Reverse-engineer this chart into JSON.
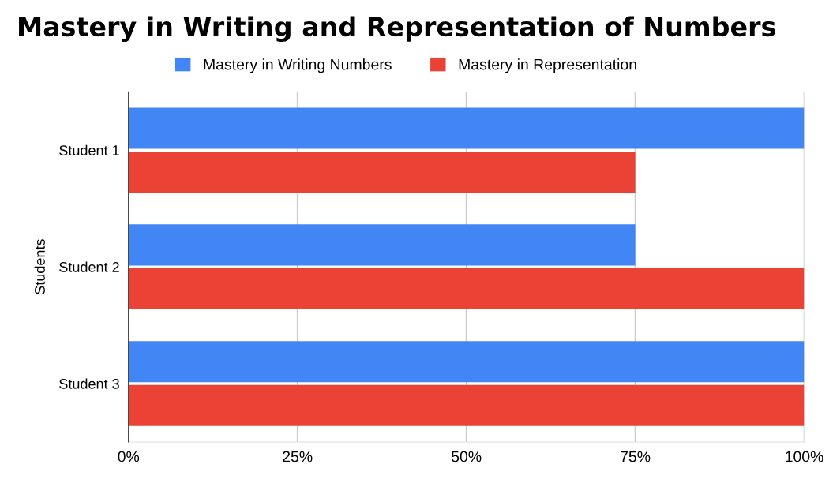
{
  "chart_data": {
    "type": "bar",
    "orientation": "horizontal",
    "title": "Mastery in Writing and Representation of Numbers",
    "ylabel": "Students",
    "categories": [
      "Student 1",
      "Student 2",
      "Student 3"
    ],
    "series": [
      {
        "name": "Mastery in Writing Numbers",
        "color": "#4285f4",
        "values": [
          100,
          75,
          100
        ]
      },
      {
        "name": "Mastery in Representation",
        "color": "#ea4335",
        "values": [
          75,
          100,
          100
        ]
      }
    ],
    "xlim": [
      0,
      100
    ],
    "xticks": [
      {
        "value": 0,
        "label": "0%"
      },
      {
        "value": 25,
        "label": "25%"
      },
      {
        "value": 50,
        "label": "50%"
      },
      {
        "value": 75,
        "label": "75%"
      },
      {
        "value": 100,
        "label": "100%"
      }
    ],
    "grid": "x",
    "legend": "top"
  }
}
